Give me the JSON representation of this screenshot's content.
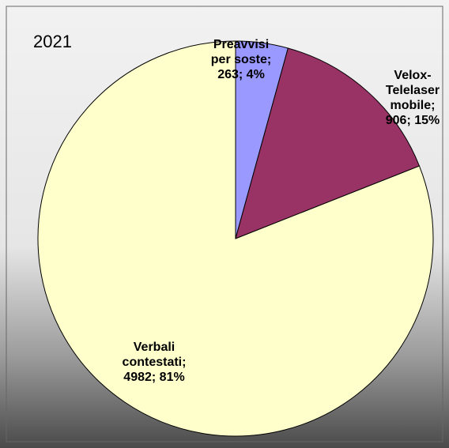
{
  "chart_data": {
    "type": "pie",
    "title": "2021",
    "values": [
      263,
      906,
      4982
    ],
    "value_labels": [
      "Preavvisi per soste; 263; 4%",
      "Velox-Telelaser mobile; 906; 15%",
      "Verbali contestati; 4982; 81%"
    ],
    "colors": [
      "#9999ff",
      "#993366",
      "#ffffcc"
    ]
  }
}
